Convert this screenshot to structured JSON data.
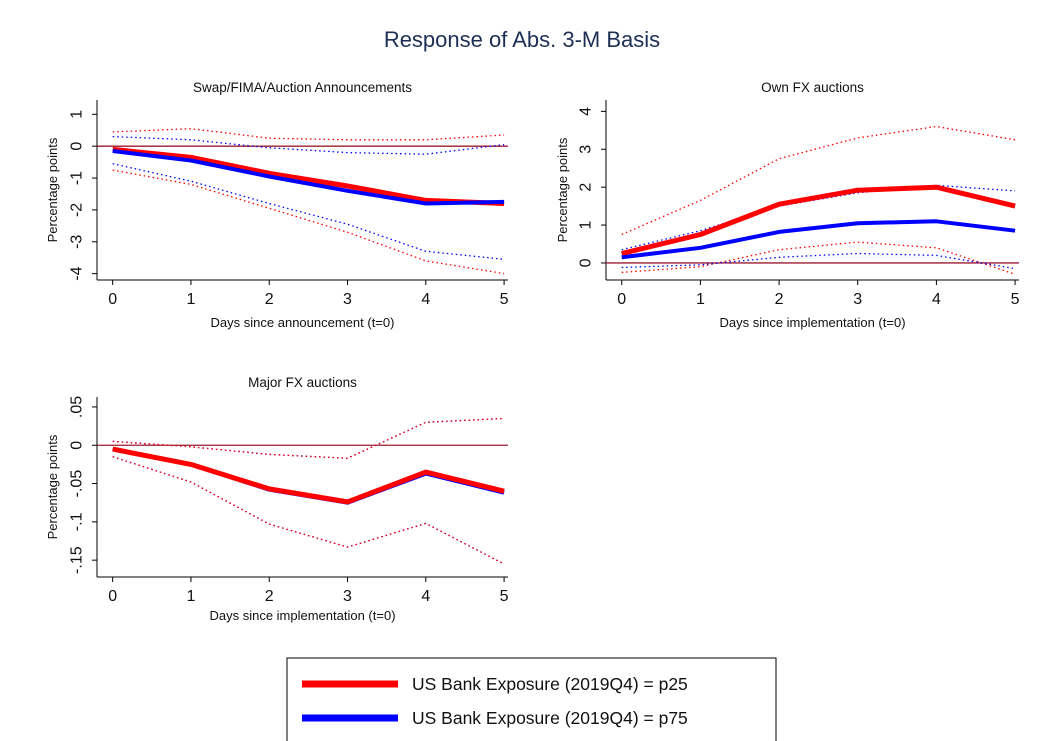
{
  "title": "Response of Abs. 3-M Basis",
  "colors": {
    "p25": "#ff0000",
    "p75": "#0000ff",
    "zero_line": "#9b1b30",
    "title": "#1e2f55"
  },
  "legend": {
    "items": [
      {
        "label": "US Bank Exposure (2019Q4) = p25",
        "color": "#ff0000"
      },
      {
        "label": "US Bank Exposure (2019Q4) = p75",
        "color": "#0000ff"
      }
    ]
  },
  "chart_data": [
    {
      "type": "line",
      "title": "Swap/FIMA/Auction Announcements",
      "xlabel": "Days since announcement (t=0)",
      "ylabel": "Percentage points",
      "x": [
        0,
        1,
        2,
        3,
        4,
        5
      ],
      "xlim": [
        -0.2,
        5.05
      ],
      "ylim": [
        -4.2,
        1.45
      ],
      "yticks": [
        1,
        0,
        -1,
        -2,
        -3,
        -4
      ],
      "ytick_labels": [
        "1",
        "0",
        "-1",
        "-2",
        "-3",
        "-4"
      ],
      "zero_line": 0,
      "series": [
        {
          "key": "p25",
          "color": "#ff0000",
          "values": [
            -0.1,
            -0.35,
            -0.85,
            -1.25,
            -1.7,
            -1.8
          ]
        },
        {
          "key": "p75",
          "color": "#0000ff",
          "values": [
            -0.15,
            -0.45,
            -0.95,
            -1.4,
            -1.8,
            -1.75
          ]
        }
      ],
      "bands": [
        {
          "key": "p25",
          "color": "#ff0000",
          "upper": [
            0.45,
            0.55,
            0.25,
            0.2,
            0.2,
            0.35
          ],
          "lower": [
            -0.75,
            -1.2,
            -1.95,
            -2.7,
            -3.6,
            -4.0
          ]
        },
        {
          "key": "p75",
          "color": "#0000ff",
          "upper": [
            0.3,
            0.2,
            -0.05,
            -0.2,
            -0.25,
            0.05
          ],
          "lower": [
            -0.55,
            -1.1,
            -1.8,
            -2.45,
            -3.3,
            -3.55
          ]
        }
      ]
    },
    {
      "type": "line",
      "title": "Own FX auctions",
      "xlabel": "Days since implementation (t=0)",
      "ylabel": "Percentage points",
      "x": [
        0,
        1,
        2,
        3,
        4,
        5
      ],
      "xlim": [
        -0.2,
        5.05
      ],
      "ylim": [
        -0.45,
        4.3
      ],
      "yticks": [
        4,
        3,
        2,
        1,
        0
      ],
      "ytick_labels": [
        "4",
        "3",
        "2",
        "1",
        "0"
      ],
      "zero_line": 0,
      "series": [
        {
          "key": "p25",
          "color": "#ff0000",
          "values": [
            0.25,
            0.75,
            1.55,
            1.92,
            2.0,
            1.5
          ]
        },
        {
          "key": "p75",
          "color": "#0000ff",
          "values": [
            0.15,
            0.4,
            0.82,
            1.05,
            1.1,
            0.85
          ]
        }
      ],
      "bands": [
        {
          "key": "p25",
          "color": "#ff0000",
          "upper": [
            0.75,
            1.65,
            2.75,
            3.3,
            3.6,
            3.25
          ],
          "lower": [
            -0.25,
            -0.1,
            0.35,
            0.55,
            0.4,
            -0.3
          ]
        },
        {
          "key": "p75",
          "color": "#0000ff",
          "upper": [
            0.35,
            0.85,
            1.5,
            1.85,
            2.05,
            1.9
          ],
          "lower": [
            -0.12,
            -0.05,
            0.15,
            0.25,
            0.2,
            -0.15
          ]
        }
      ]
    },
    {
      "type": "line",
      "title": "Major FX auctions",
      "xlabel": "Days since implementation (t=0)",
      "ylabel": "Percentage points",
      "x": [
        0,
        1,
        2,
        3,
        4,
        5
      ],
      "xlim": [
        -0.2,
        5.05
      ],
      "ylim": [
        -0.172,
        0.063
      ],
      "yticks": [
        0.05,
        0,
        -0.05,
        -0.1,
        -0.15
      ],
      "ytick_labels": [
        ".05",
        "0",
        "-.05",
        "-.1",
        "-.15"
      ],
      "zero_line": 0,
      "series": [
        {
          "key": "p75",
          "color": "#0000ff",
          "values": [
            -0.005,
            -0.025,
            -0.058,
            -0.075,
            -0.037,
            -0.062
          ]
        },
        {
          "key": "p25",
          "color": "#ff0000",
          "values": [
            -0.005,
            -0.025,
            -0.057,
            -0.074,
            -0.035,
            -0.06
          ]
        }
      ],
      "bands": [
        {
          "key": "p75",
          "color": "#0000ff",
          "upper": [
            0.005,
            -0.002,
            -0.012,
            -0.017,
            0.03,
            0.035
          ],
          "lower": [
            -0.015,
            -0.048,
            -0.103,
            -0.133,
            -0.102,
            -0.155
          ]
        },
        {
          "key": "p25",
          "color": "#ff0000",
          "upper": [
            0.005,
            -0.002,
            -0.012,
            -0.017,
            0.03,
            0.035
          ],
          "lower": [
            -0.015,
            -0.048,
            -0.103,
            -0.133,
            -0.102,
            -0.155
          ]
        }
      ]
    }
  ]
}
